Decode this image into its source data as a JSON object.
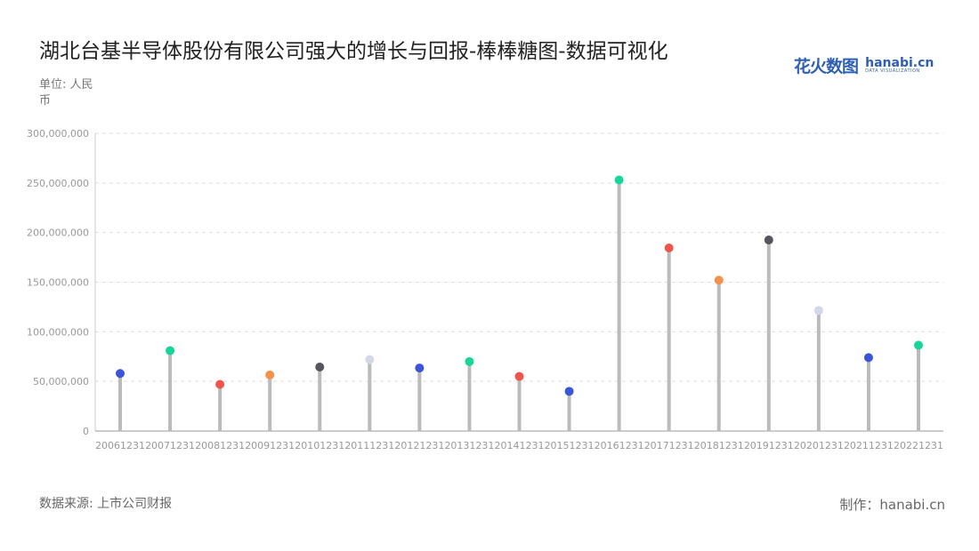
{
  "header": {
    "title": "湖北台基半导体股份有限公司强大的增长与回报-棒棒糖图-数据可视化",
    "logo_cn": "花火数图",
    "logo_en": "hanabi.cn",
    "logo_sub": "DATA VISUALIZATION"
  },
  "unit_label": "单位: 人民币",
  "footer": {
    "source": "数据来源: 上市公司财报",
    "maker": "制作：hanabi.cn"
  },
  "chart_data": {
    "type": "lollipop",
    "categories": [
      "20061231",
      "20071231",
      "20081231",
      "20091231",
      "20101231",
      "20111231",
      "20121231",
      "20131231",
      "20141231",
      "20151231",
      "20161231",
      "20171231",
      "20181231",
      "20191231",
      "20201231",
      "20211231",
      "20221231"
    ],
    "values": [
      58000000,
      81000000,
      47000000,
      56500000,
      64500000,
      72000000,
      63500000,
      70000000,
      55000000,
      40000000,
      253000000,
      184500000,
      152000000,
      192500000,
      121500000,
      74000000,
      86500000
    ],
    "colors": [
      "#3a55d8",
      "#18d69a",
      "#f0554b",
      "#f5914a",
      "#55555f",
      "#d3d8e6",
      "#3a55d8",
      "#18d69a",
      "#f0554b",
      "#3a55d8",
      "#18d69a",
      "#f0554b",
      "#f5914a",
      "#55555f",
      "#d3d8e6",
      "#3a55d8",
      "#18d69a"
    ],
    "yticks": [
      "0",
      "50,000,000",
      "100,000,000",
      "150,000,000",
      "200,000,000",
      "250,000,000",
      "300,000,000"
    ],
    "ylim": [
      0,
      300000000
    ],
    "grid": true,
    "stem_color": "#bbbbbb"
  }
}
